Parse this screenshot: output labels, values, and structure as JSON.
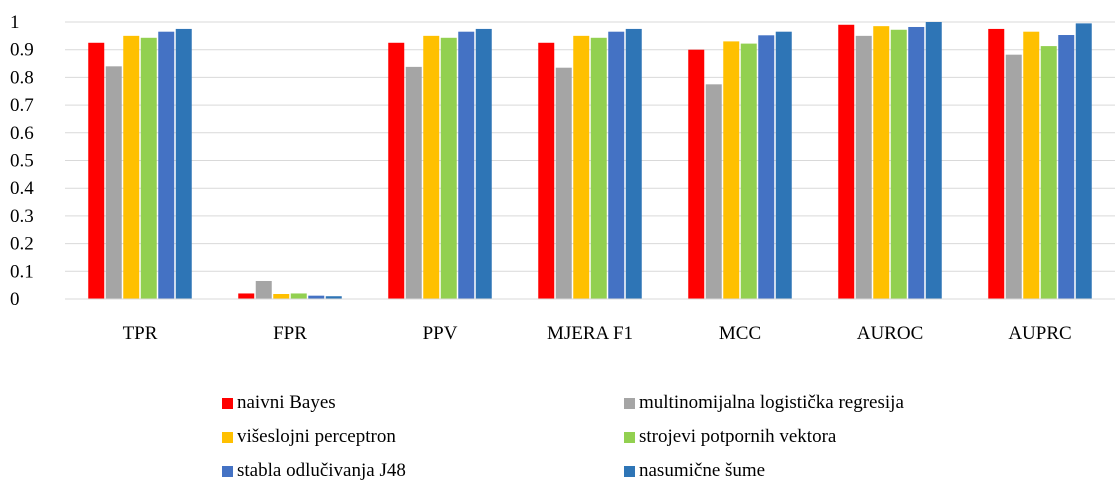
{
  "chart_data": {
    "type": "bar",
    "title": "",
    "xlabel": "",
    "ylabel": "",
    "ylim": [
      0,
      1
    ],
    "yticks": [
      "0",
      "0.1",
      "0.2",
      "0.3",
      "0.4",
      "0.5",
      "0.6",
      "0.7",
      "0.8",
      "0.9",
      "1"
    ],
    "grid": "horizontal",
    "legend_position": "bottom",
    "categories": [
      "TPR",
      "FPR",
      "PPV",
      "MJERA F1",
      "MCC",
      "AUROC",
      "AUPRC"
    ],
    "series": [
      {
        "name": "naivni Bayes",
        "color": "#ff0000",
        "values": [
          0.925,
          0.02,
          0.925,
          0.925,
          0.9,
          0.99,
          0.975
        ]
      },
      {
        "name": "multinomijalna logistička regresija",
        "color": "#a5a5a5",
        "values": [
          0.84,
          0.065,
          0.838,
          0.835,
          0.775,
          0.95,
          0.882
        ]
      },
      {
        "name": "višeslojni perceptron",
        "color": "#ffc000",
        "values": [
          0.95,
          0.018,
          0.95,
          0.95,
          0.93,
          0.985,
          0.965
        ]
      },
      {
        "name": "strojevi potpornih vektora",
        "color": "#92d050",
        "values": [
          0.943,
          0.02,
          0.943,
          0.943,
          0.922,
          0.972,
          0.913
        ]
      },
      {
        "name": "stabla odlučivanja J48",
        "color": "#4472c4",
        "values": [
          0.965,
          0.012,
          0.965,
          0.965,
          0.952,
          0.982,
          0.953
        ]
      },
      {
        "name": "nasumične šume",
        "color": "#2e75b6",
        "values": [
          0.975,
          0.01,
          0.975,
          0.975,
          0.965,
          1.0,
          0.995
        ]
      }
    ]
  }
}
